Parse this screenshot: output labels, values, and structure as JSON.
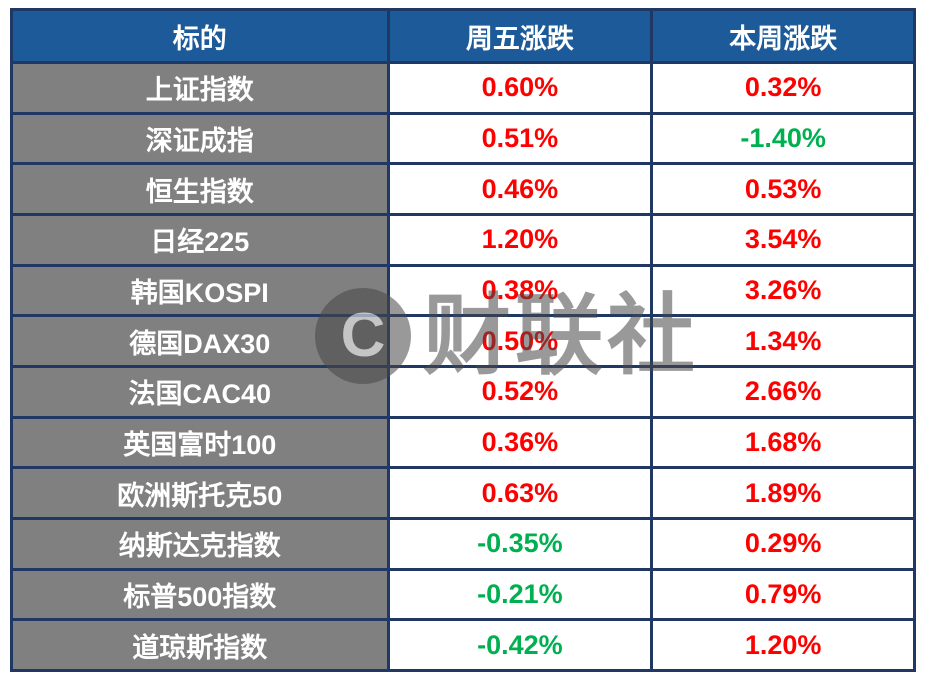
{
  "chart_data": {
    "type": "table",
    "columns": [
      "标的",
      "周五涨跌",
      "本周涨跌"
    ],
    "rows": [
      {
        "target": "上证指数",
        "friday": "0.60%",
        "friday_dir": "up",
        "week": "0.32%",
        "week_dir": "up"
      },
      {
        "target": "深证成指",
        "friday": "0.51%",
        "friday_dir": "up",
        "week": "-1.40%",
        "week_dir": "down"
      },
      {
        "target": "恒生指数",
        "friday": "0.46%",
        "friday_dir": "up",
        "week": "0.53%",
        "week_dir": "up"
      },
      {
        "target": "日经225",
        "friday": "1.20%",
        "friday_dir": "up",
        "week": "3.54%",
        "week_dir": "up"
      },
      {
        "target": "韩国KOSPI",
        "friday": "0.38%",
        "friday_dir": "up",
        "week": "3.26%",
        "week_dir": "up"
      },
      {
        "target": "德国DAX30",
        "friday": "0.50%",
        "friday_dir": "up",
        "week": "1.34%",
        "week_dir": "up"
      },
      {
        "target": "法国CAC40",
        "friday": "0.52%",
        "friday_dir": "up",
        "week": "2.66%",
        "week_dir": "up"
      },
      {
        "target": "英国富时100",
        "friday": "0.36%",
        "friday_dir": "up",
        "week": "1.68%",
        "week_dir": "up"
      },
      {
        "target": "欧洲斯托克50",
        "friday": "0.63%",
        "friday_dir": "up",
        "week": "1.89%",
        "week_dir": "up"
      },
      {
        "target": "纳斯达克指数",
        "friday": "-0.35%",
        "friday_dir": "down",
        "week": "0.29%",
        "week_dir": "up"
      },
      {
        "target": "标普500指数",
        "friday": "-0.21%",
        "friday_dir": "down",
        "week": "0.79%",
        "week_dir": "up"
      },
      {
        "target": "道琼斯指数",
        "friday": "-0.42%",
        "friday_dir": "down",
        "week": "1.20%",
        "week_dir": "up"
      }
    ]
  },
  "watermark": {
    "logo_letter": "C",
    "brand_text": "财联社"
  },
  "colors": {
    "header_bg": "#1d5a99",
    "row_label_bg": "#808080",
    "up": "#ff0000",
    "down": "#00b050",
    "grid": "#1f3864"
  }
}
